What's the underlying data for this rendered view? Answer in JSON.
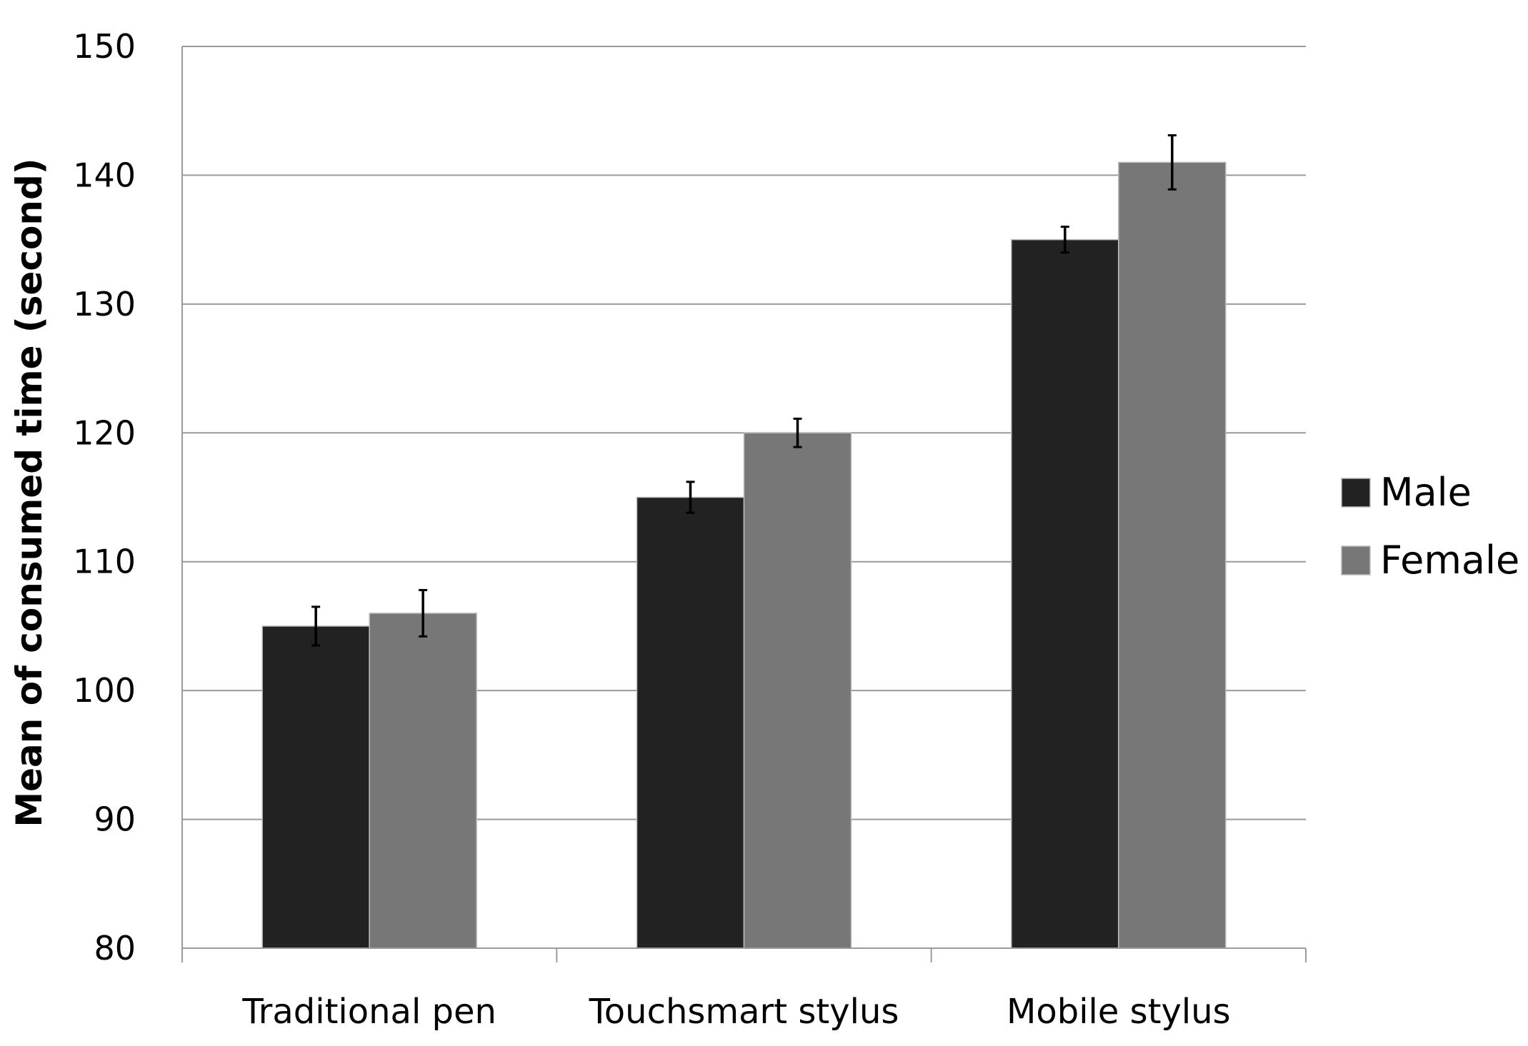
{
  "chart_data": {
    "type": "bar",
    "title": "",
    "xlabel": "",
    "ylabel": "Mean of consumed time (second)",
    "ylim": [
      80,
      150
    ],
    "yticks": [
      80,
      90,
      100,
      110,
      120,
      130,
      140,
      150
    ],
    "grid": "horizontal",
    "legend_position": "right",
    "categories": [
      "Traditional pen",
      "Touchsmart stylus",
      "Mobile stylus"
    ],
    "series": [
      {
        "name": "Male",
        "color": "#222222",
        "values": [
          105,
          115,
          135
        ],
        "errors": [
          1.5,
          1.2,
          1.0
        ]
      },
      {
        "name": "Female",
        "color": "#777777",
        "values": [
          106,
          120,
          141
        ],
        "errors": [
          1.8,
          1.1,
          2.1
        ]
      }
    ]
  }
}
